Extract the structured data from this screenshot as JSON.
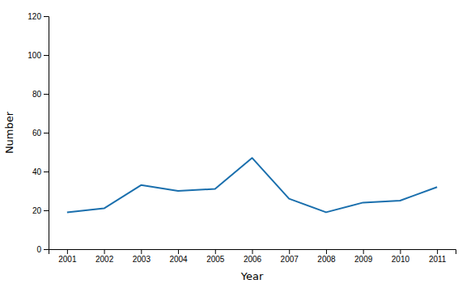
{
  "chart_data": {
    "type": "line",
    "x": [
      2001,
      2002,
      2003,
      2004,
      2005,
      2006,
      2007,
      2008,
      2009,
      2010,
      2011
    ],
    "values": [
      19,
      21,
      33,
      30,
      31,
      47,
      26,
      19,
      24,
      25,
      32
    ],
    "color": "#1a6fad",
    "xlabel": "Year",
    "ylabel": "Number",
    "xlim": [
      2000.5,
      2011.5
    ],
    "xticks": [
      2001,
      2002,
      2003,
      2004,
      2005,
      2006,
      2007,
      2008,
      2009,
      2010,
      2011
    ],
    "ylim": [
      0,
      120
    ],
    "yticks": [
      0,
      20,
      40,
      60,
      80,
      100,
      120
    ],
    "grid": false
  }
}
